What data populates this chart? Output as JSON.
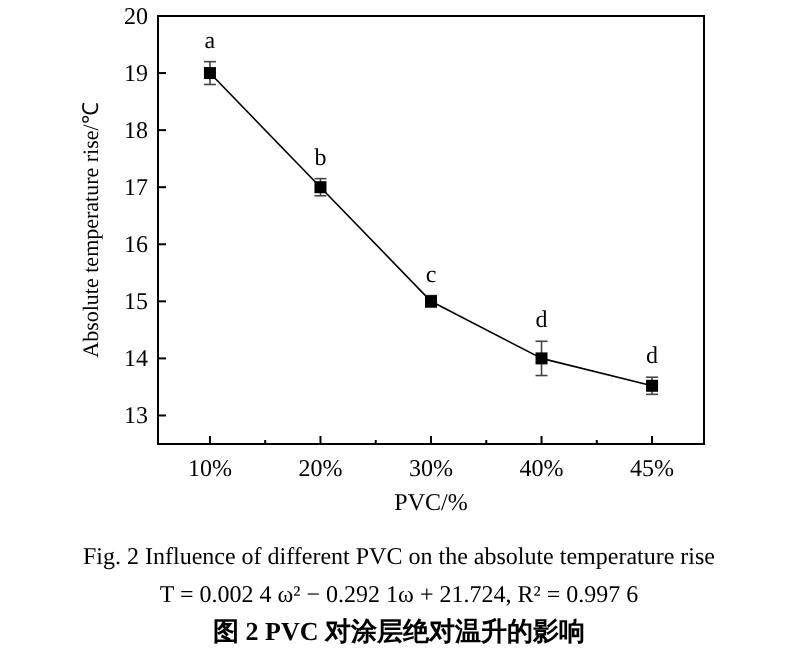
{
  "chart_data": {
    "type": "line",
    "xlabel": "PVC/%",
    "ylabel": "Absolute temperature rise/℃",
    "categories": [
      "10%",
      "20%",
      "30%",
      "40%",
      "45%"
    ],
    "series": [
      {
        "color": "#000000",
        "values": [
          19.0,
          17.0,
          15.0,
          14.0,
          13.52
        ],
        "errors": [
          0.2,
          0.15,
          0.1,
          0.3,
          0.15
        ]
      }
    ],
    "marker": "square",
    "line_style": "solid",
    "ylim": [
      12.5,
      20
    ],
    "yticks": [
      13,
      14,
      15,
      16,
      17,
      18,
      19,
      20
    ],
    "annotations": [
      {
        "text": "a",
        "x": "10%",
        "y": 19.0
      },
      {
        "text": "b",
        "x": "20%",
        "y": 17.0
      },
      {
        "text": "c",
        "x": "30%",
        "y": 15.0
      },
      {
        "text": "d",
        "x": "40%",
        "y": 14.0
      },
      {
        "text": "d",
        "x": "45%",
        "y": 13.52
      },
      "Fig. 2   Influence of different PVC on the absolute temperature rise",
      "T = 0.002 4 ω² − 0.292 1ω + 21.724, R² = 0.997 6",
      "图 2   PVC 对涂层绝对温升的影响"
    ]
  }
}
